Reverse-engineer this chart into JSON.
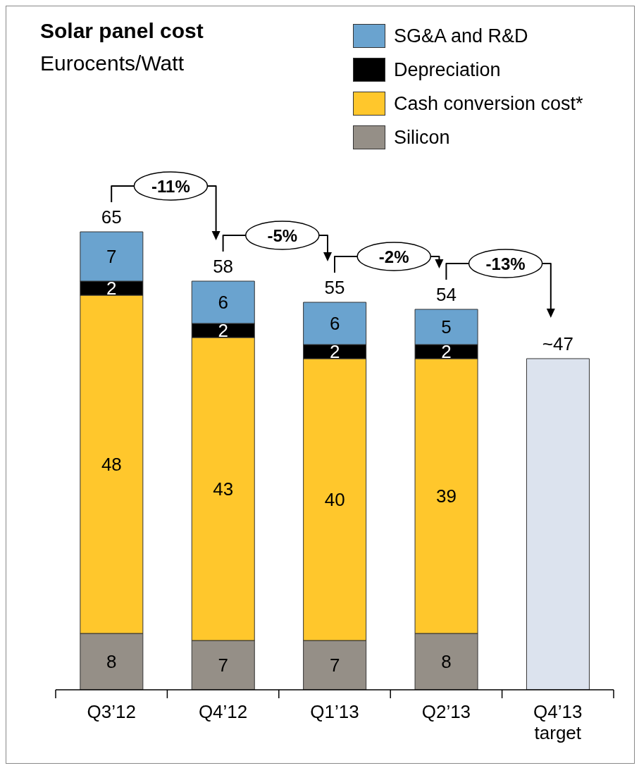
{
  "chart_data": {
    "type": "bar",
    "title": "Solar panel cost",
    "subtitle": "Eurocents/Watt",
    "categories": [
      "Q3’12",
      "Q4’12",
      "Q1’13",
      "Q2’13",
      "Q4’13 target"
    ],
    "stacked": true,
    "legend": "top right",
    "series": [
      {
        "name": "Silicon",
        "color": "#958f87",
        "values": [
          8,
          7,
          7,
          8,
          null
        ],
        "value_labels": [
          "8",
          "7",
          "7",
          "8",
          null
        ]
      },
      {
        "name": "Cash conversion cost*",
        "color": "#ffc72c",
        "values": [
          48,
          43,
          40,
          39,
          null
        ],
        "value_labels": [
          "48",
          "43",
          "40",
          "39",
          null
        ]
      },
      {
        "name": "Depreciation",
        "color": "#000000",
        "values": [
          2,
          2,
          2,
          2,
          null
        ],
        "value_labels": [
          "2",
          "2",
          "2",
          "2",
          null
        ]
      },
      {
        "name": "SG&A and R&D",
        "color": "#6aa3cf",
        "values": [
          7,
          6,
          6,
          5,
          null
        ],
        "value_labels": [
          "7",
          "6",
          "6",
          "5",
          null
        ]
      },
      {
        "color": "#dce3ee",
        "values": [
          null,
          null,
          null,
          null,
          47
        ],
        "value_labels": [
          null,
          null,
          null,
          null,
          null
        ]
      }
    ],
    "totals": [
      "65",
      "58",
      "55",
      "54",
      "~47"
    ],
    "annotations": [
      "-11%",
      "-5%",
      "-2%",
      "-13%"
    ]
  }
}
